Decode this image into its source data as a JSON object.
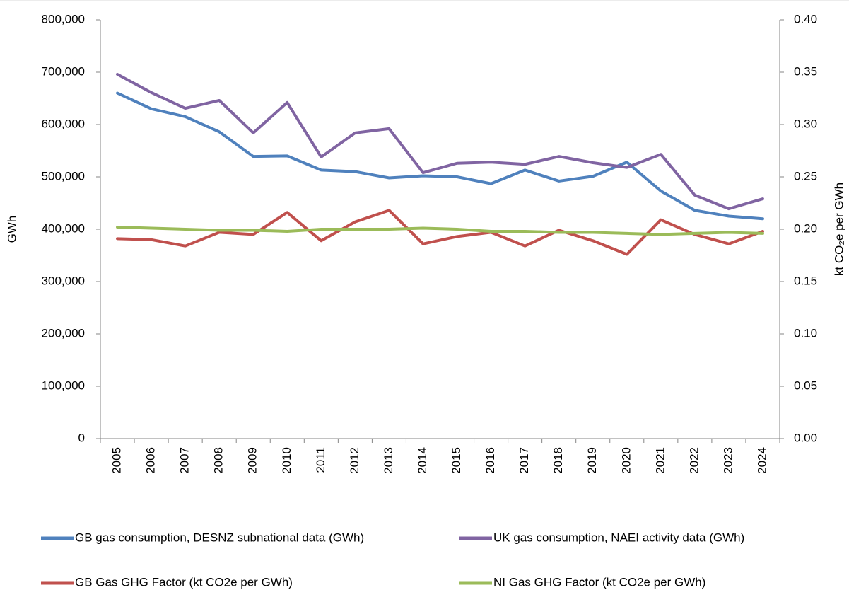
{
  "chart_data": {
    "type": "line",
    "categories": [
      "2005",
      "2006",
      "2007",
      "2008",
      "2009",
      "2010",
      "2011",
      "2012",
      "2013",
      "2014",
      "2015",
      "2016",
      "2017",
      "2018",
      "2019",
      "2020",
      "2021",
      "2022",
      "2023",
      "2024"
    ],
    "y_label": "GWh",
    "y2_label": "kt CO₂e per GWh",
    "ylim": [
      0,
      800000
    ],
    "yticks": [
      {
        "value": 0,
        "label": "0"
      },
      {
        "value": 100000,
        "label": "100,000"
      },
      {
        "value": 200000,
        "label": "200,000"
      },
      {
        "value": 300000,
        "label": "300,000"
      },
      {
        "value": 400000,
        "label": "400,000"
      },
      {
        "value": 500000,
        "label": "500,000"
      },
      {
        "value": 600000,
        "label": "600,000"
      },
      {
        "value": 700000,
        "label": "700,000"
      },
      {
        "value": 800000,
        "label": "800,000"
      }
    ],
    "y2lim": [
      0,
      0.4
    ],
    "y2ticks": [
      {
        "value": 0,
        "label": "0.00"
      },
      {
        "value": 0.05,
        "label": "0.05"
      },
      {
        "value": 0.1,
        "label": "0.10"
      },
      {
        "value": 0.15,
        "label": "0.15"
      },
      {
        "value": 0.2,
        "label": "0.20"
      },
      {
        "value": 0.25,
        "label": "0.25"
      },
      {
        "value": 0.3,
        "label": "0.30"
      },
      {
        "value": 0.35,
        "label": "0.35"
      },
      {
        "value": 0.4,
        "label": "0.40"
      }
    ],
    "grid": false,
    "legend": "bottom",
    "series": [
      {
        "name": "GB gas consumption, DESNZ subnational data (GWh)",
        "color": "#4f81bd",
        "values": [
          660000,
          630000,
          615000,
          586000,
          539000,
          540000,
          513000,
          510000,
          498000,
          502000,
          500000,
          487000,
          513000,
          492000,
          501000,
          528000,
          473000,
          436000,
          425000,
          420000
        ]
      },
      {
        "name": "UK gas consumption, NAEI activity data (GWh)",
        "color": "#8064a2",
        "values": [
          696000,
          661000,
          631000,
          646000,
          584000,
          642000,
          538000,
          584000,
          592000,
          508000,
          526000,
          528000,
          524000,
          539000,
          527000,
          518000,
          543000,
          465000,
          439000,
          458000
        ]
      },
      {
        "name": "GB Gas GHG Factor (kt CO2e per GWh)",
        "color": "#c0504d",
        "axis": "y2",
        "values": [
          0.191,
          0.19,
          0.184,
          0.197,
          0.195,
          0.216,
          0.189,
          0.207,
          0.218,
          0.186,
          0.193,
          0.197,
          0.184,
          0.199,
          0.189,
          0.176,
          0.209,
          0.195,
          0.186,
          0.198
        ]
      },
      {
        "name": "NI Gas GHG  Factor (kt CO2e per GWh)",
        "color": "#9bbb59",
        "axis": "y2",
        "values": [
          0.202,
          0.201,
          0.2,
          0.199,
          0.199,
          0.198,
          0.2,
          0.2,
          0.2,
          0.201,
          0.2,
          0.198,
          0.198,
          0.197,
          0.197,
          0.196,
          0.195,
          0.196,
          0.197,
          0.196
        ]
      }
    ]
  }
}
